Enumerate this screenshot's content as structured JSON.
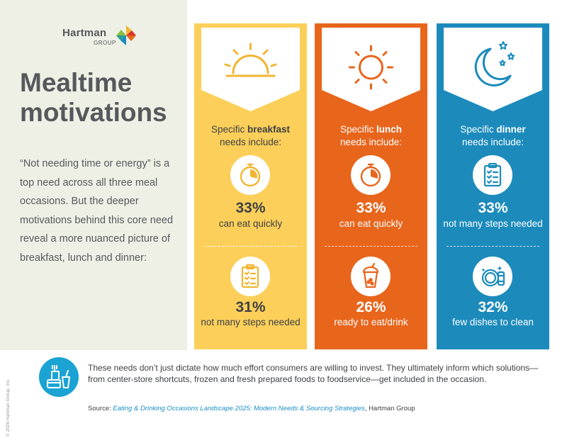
{
  "brand": {
    "name": "Hartman",
    "sub": "GROUP"
  },
  "headline": {
    "line1": "Mealtime",
    "line2": "motivations"
  },
  "intro": "“Not needing time or energy” is a top need across all three meal occasions. But the deeper motivations behind this core need reveal a more nuanced picture of breakfast, lunch and dinner:",
  "colors": {
    "breakfast": "#fbcf5a",
    "lunch": "#e8651c",
    "dinner": "#1c8bbc",
    "left_panel": "#eef0e6",
    "text": "#56585b"
  },
  "columns": [
    {
      "id": "breakfast",
      "banner_icon": "sunrise-icon",
      "title_pre": "Specific ",
      "title_bold": "breakfast",
      "title_post": "needs include:",
      "stats": [
        {
          "icon": "stopwatch-icon",
          "pct": "33%",
          "label": "can eat quickly"
        },
        {
          "icon": "checklist-icon",
          "pct": "31%",
          "label": "not many steps needed"
        }
      ]
    },
    {
      "id": "lunch",
      "banner_icon": "sun-icon",
      "title_pre": "Specific ",
      "title_bold": "lunch",
      "title_post": "needs include:",
      "stats": [
        {
          "icon": "stopwatch-icon",
          "pct": "33%",
          "label": "can eat quickly"
        },
        {
          "icon": "boba-drink-icon",
          "pct": "26%",
          "label": "ready to eat/drink"
        }
      ]
    },
    {
      "id": "dinner",
      "banner_icon": "moon-stars-icon",
      "title_pre": "Specific ",
      "title_bold": "dinner",
      "title_post": "needs include:",
      "stats": [
        {
          "icon": "checklist-icon",
          "pct": "33%",
          "label": "not many steps needed"
        },
        {
          "icon": "clean-dishes-icon",
          "pct": "32%",
          "label": "few dishes to clean"
        }
      ]
    }
  ],
  "footer": {
    "icon": "food-containers-icon",
    "text": "These needs don’t just dictate how much effort consumers are willing to invest. They ultimately inform which solutions—from center-store shortcuts, frozen and fresh prepared foods to foodservice—get included in the occasion.",
    "source_label": "Source:",
    "source_title": "Eating & Drinking Occasions Landscape 2025: Modern Needs & Sourcing Strategies",
    "source_org": ", Hartman Group"
  },
  "copyright": "© 2026 Hartman Group, Inc."
}
